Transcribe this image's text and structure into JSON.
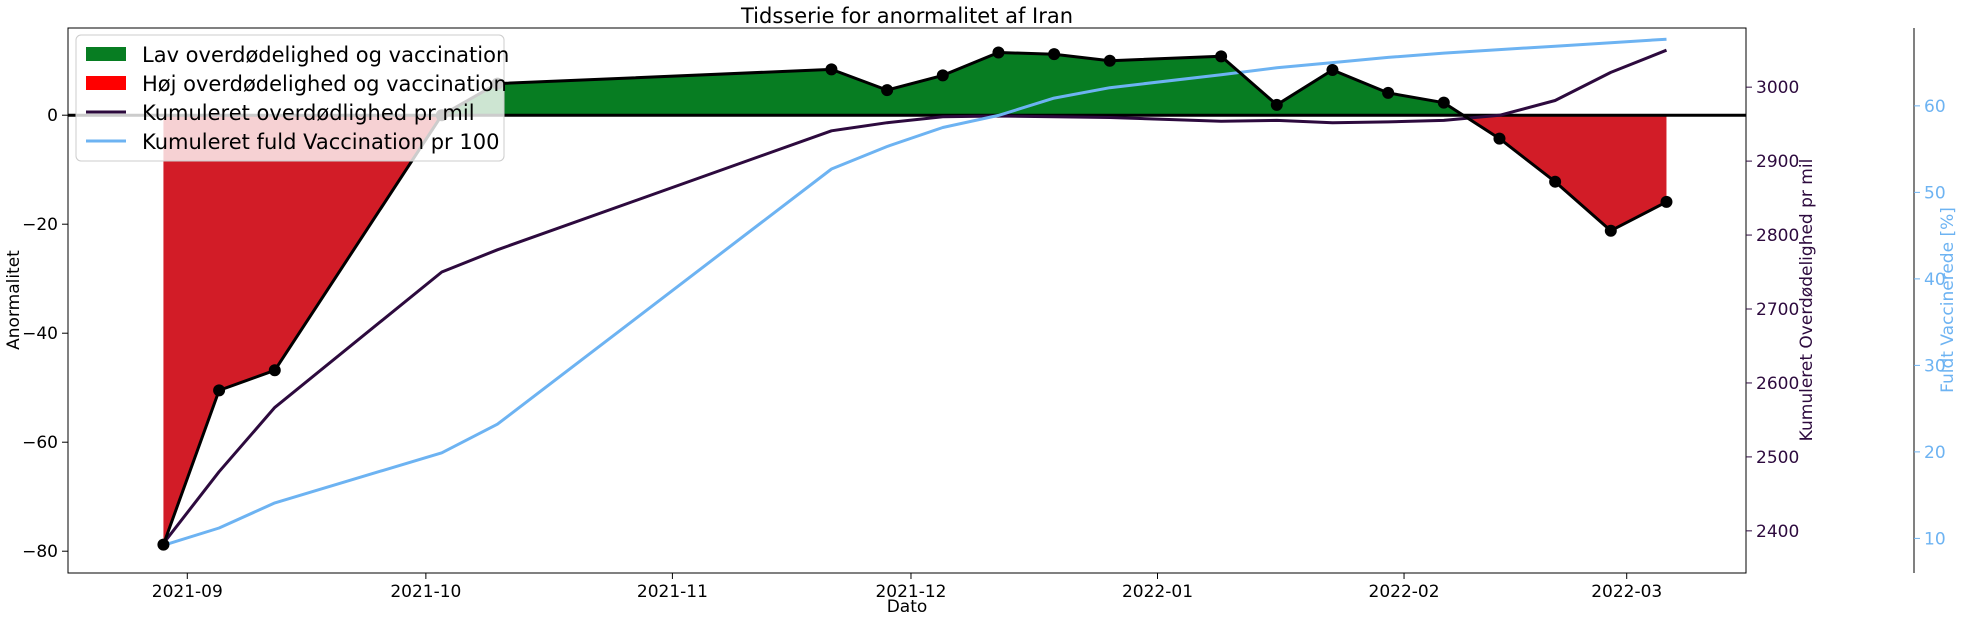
{
  "chart_data": {
    "type": "line",
    "title": "Tidsserie for anormalitet af Iran",
    "xlabel": "Dato",
    "x_tick_labels": [
      "2021-09",
      "2021-10",
      "2021-11",
      "2021-12",
      "2022-01",
      "2022-02",
      "2022-03"
    ],
    "x_ticks": [
      "2021-09-01",
      "2021-10-01",
      "2021-11-01",
      "2021-12-01",
      "2022-01-01",
      "2022-02-01",
      "2022-03-01"
    ],
    "xlim": [
      "2021-08-17",
      "2022-03-16"
    ],
    "grid": false,
    "legend_placement": "top-left",
    "axes": {
      "left": {
        "label": "Anormalitet",
        "ylim": [
          -84,
          16
        ],
        "ticks": [
          -80,
          -60,
          -40,
          -20,
          0
        ],
        "tick_labels": [
          "−80",
          "−60",
          "−40",
          "−20",
          "0"
        ]
      },
      "right1": {
        "label": "Kumuleret Overdødelighed pr mil",
        "ylim": [
          2343,
          3080
        ],
        "ticks": [
          2400,
          2500,
          2600,
          2700,
          2800,
          2900,
          3000
        ],
        "tick_labels": [
          "2400",
          "2500",
          "2600",
          "2700",
          "2800",
          "2900",
          "3000"
        ],
        "color": "#2d0a3e"
      },
      "right2": {
        "label": "Fuldt Vaccinerede [%]",
        "ylim": [
          6,
          69
        ],
        "ticks": [
          10,
          20,
          30,
          40,
          50,
          60
        ],
        "tick_labels": [
          "10",
          "20",
          "30",
          "40",
          "50",
          "60"
        ],
        "color": "#6db3f2"
      }
    },
    "x": [
      "2021-08-29",
      "2021-09-05",
      "2021-09-12",
      "2021-10-03",
      "2021-10-10",
      "2021-11-21",
      "2021-11-28",
      "2021-12-05",
      "2021-12-12",
      "2021-12-19",
      "2021-12-26",
      "2022-01-09",
      "2022-01-16",
      "2022-01-23",
      "2022-01-30",
      "2022-02-06",
      "2022-02-13",
      "2022-02-20",
      "2022-02-27",
      "2022-03-06"
    ],
    "series": [
      {
        "name": "Anormalitet",
        "axis": "left",
        "color": "#000000",
        "values": [
          -78.8,
          -50.5,
          -46.8,
          0.0,
          5.8,
          8.4,
          4.6,
          7.3,
          11.5,
          11.2,
          10.0,
          10.8,
          1.9,
          8.3,
          4.1,
          2.3,
          -4.3,
          -12.2,
          -21.2,
          -15.9
        ]
      },
      {
        "name": "Kumuleret overdødlighed pr mil",
        "axis": "right1",
        "color": "#2d0a3e",
        "values": [
          2383,
          2480,
          2567,
          2750,
          2780,
          2941,
          2952,
          2960,
          2961,
          2960,
          2959,
          2954,
          2955,
          2952,
          2953,
          2955,
          2962,
          2982,
          3020,
          3050
        ]
      },
      {
        "name": "Kumuleret fuld Vaccination pr 100",
        "axis": "right2",
        "color": "#6db3f2",
        "values": [
          9.2,
          11.2,
          14.1,
          19.9,
          23.2,
          52.7,
          55.3,
          57.5,
          58.9,
          60.9,
          62.1,
          63.6,
          64.4,
          65.0,
          65.6,
          66.1,
          66.5,
          66.9,
          67.3,
          67.7
        ]
      }
    ],
    "fills": [
      {
        "name": "Lav overdødelighed og vaccination",
        "color": "#077d22",
        "rule": "above-zero"
      },
      {
        "name": "Høj overdødelighed og vaccination",
        "color": "#d21c27",
        "rule": "below-zero"
      }
    ],
    "legend": [
      {
        "label": "Lav overdødelighed og vaccination",
        "kind": "patch",
        "color": "#077d22"
      },
      {
        "label": "Høj overdødelighed og vaccination",
        "kind": "patch",
        "color": "#ff0000"
      },
      {
        "label": "Kumuleret overdødlighed pr mil",
        "kind": "line",
        "color": "#2d0a3e"
      },
      {
        "label": "Kumuleret fuld Vaccination pr 100",
        "kind": "line",
        "color": "#6db3f2"
      }
    ]
  }
}
